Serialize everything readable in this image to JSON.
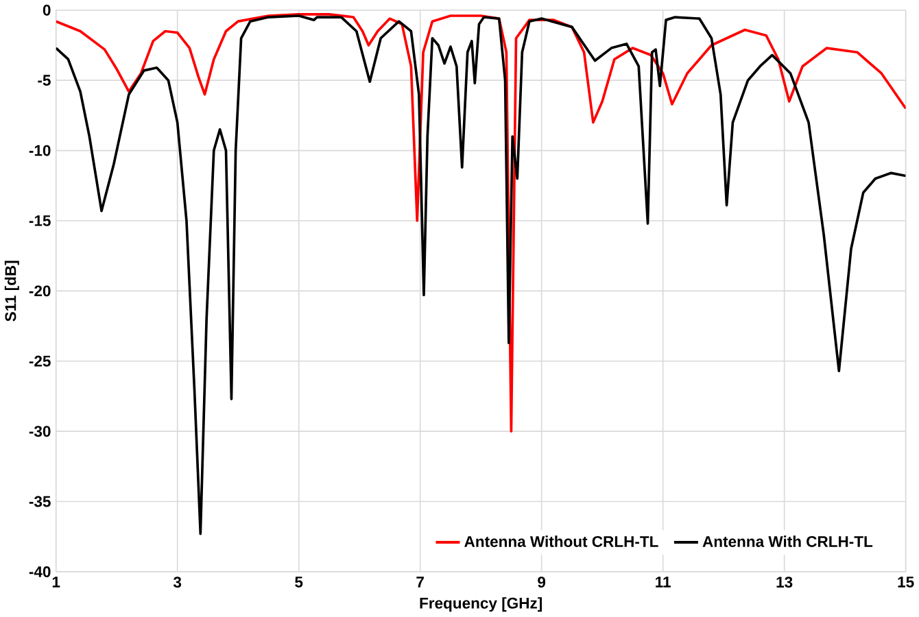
{
  "chart_data": {
    "type": "line",
    "xlabel": "Frequency [GHz]",
    "ylabel": "S11 [dB]",
    "xlim": [
      1,
      15
    ],
    "ylim": [
      -40,
      0
    ],
    "xticks": [
      1,
      3,
      5,
      7,
      9,
      11,
      13,
      15
    ],
    "yticks": [
      -40,
      -35,
      -30,
      -25,
      -20,
      -15,
      -10,
      -5,
      0
    ],
    "grid": true,
    "legend": "bottom right",
    "marker": "none",
    "line_style": "solid",
    "series": [
      {
        "name": "Antenna Without CRLH-TL",
        "color": "#ff0000",
        "x": [
          1,
          1.4,
          1.8,
          2.0,
          2.2,
          2.4,
          2.6,
          2.8,
          3.0,
          3.2,
          3.35,
          3.45,
          3.6,
          3.8,
          4.0,
          4.5,
          5,
          5.5,
          5.9,
          6.05,
          6.15,
          6.3,
          6.5,
          6.7,
          6.85,
          6.95,
          7.05,
          7.2,
          7.5,
          8,
          8.3,
          8.42,
          8.5,
          8.58,
          8.8,
          9.2,
          9.5,
          9.7,
          9.85,
          10.0,
          10.2,
          10.5,
          10.8,
          11.0,
          11.15,
          11.4,
          11.8,
          12.35,
          12.7,
          12.9,
          13.08,
          13.3,
          13.7,
          14.2,
          14.6,
          15
        ],
        "values": [
          -0.8,
          -1.5,
          -2.8,
          -4.2,
          -5.8,
          -4.5,
          -2.2,
          -1.5,
          -1.6,
          -2.7,
          -4.8,
          -6,
          -3.5,
          -1.5,
          -0.8,
          -0.4,
          -0.3,
          -0.3,
          -0.5,
          -1.5,
          -2.5,
          -1.5,
          -0.6,
          -1,
          -4,
          -15,
          -3,
          -0.8,
          -0.4,
          -0.4,
          -0.6,
          -3,
          -30,
          -2,
          -0.7,
          -0.7,
          -1.2,
          -3,
          -8,
          -6.5,
          -3.5,
          -2.7,
          -3.2,
          -4.5,
          -6.7,
          -4.5,
          -2.5,
          -1.4,
          -1.8,
          -3.5,
          -6.5,
          -4,
          -2.7,
          -3,
          -4.5,
          -7
        ]
      },
      {
        "name": "Antenna With CRLH-TL",
        "color": "#000000",
        "x": [
          1,
          1.2,
          1.4,
          1.55,
          1.75,
          1.95,
          2.2,
          2.45,
          2.66,
          2.85,
          3.0,
          3.15,
          3.28,
          3.38,
          3.48,
          3.6,
          3.7,
          3.8,
          3.89,
          3.96,
          4.05,
          4.2,
          4.5,
          5,
          5.25,
          5.3,
          5.7,
          5.95,
          6.17,
          6.35,
          6.65,
          6.85,
          6.98,
          7.06,
          7.12,
          7.2,
          7.3,
          7.4,
          7.5,
          7.6,
          7.69,
          7.78,
          7.85,
          7.9,
          7.97,
          8.05,
          8.3,
          8.4,
          8.46,
          8.52,
          8.6,
          8.68,
          8.8,
          9.0,
          9.5,
          9.88,
          10.15,
          10.4,
          10.6,
          10.75,
          10.82,
          10.88,
          10.95,
          11.05,
          11.2,
          11.6,
          11.8,
          11.95,
          12.05,
          12.15,
          12.4,
          12.6,
          12.8,
          13.1,
          13.4,
          13.65,
          13.9,
          14.1,
          14.3,
          14.5,
          14.76,
          15
        ],
        "values": [
          -2.7,
          -3.5,
          -5.8,
          -9,
          -14.3,
          -11,
          -6,
          -4.3,
          -4.1,
          -5,
          -8,
          -15,
          -27,
          -37.3,
          -22,
          -10,
          -8.5,
          -10,
          -27.7,
          -10,
          -2,
          -0.8,
          -0.5,
          -0.4,
          -0.7,
          -0.5,
          -0.5,
          -1.5,
          -5.1,
          -2,
          -0.8,
          -1.5,
          -6,
          -20.3,
          -9,
          -2,
          -2.5,
          -3.8,
          -2.6,
          -4,
          -11.2,
          -3,
          -2.2,
          -5.2,
          -1,
          -0.5,
          -0.6,
          -5,
          -23.7,
          -9,
          -12,
          -3,
          -0.8,
          -0.6,
          -1.2,
          -3.6,
          -2.7,
          -2.4,
          -4,
          -15.2,
          -3,
          -2.8,
          -5.4,
          -0.7,
          -0.5,
          -0.6,
          -2,
          -6,
          -13.9,
          -8,
          -5,
          -4,
          -3.2,
          -4.5,
          -8,
          -16,
          -25.7,
          -17,
          -13,
          -12,
          -11.6,
          -11.8
        ]
      }
    ]
  }
}
